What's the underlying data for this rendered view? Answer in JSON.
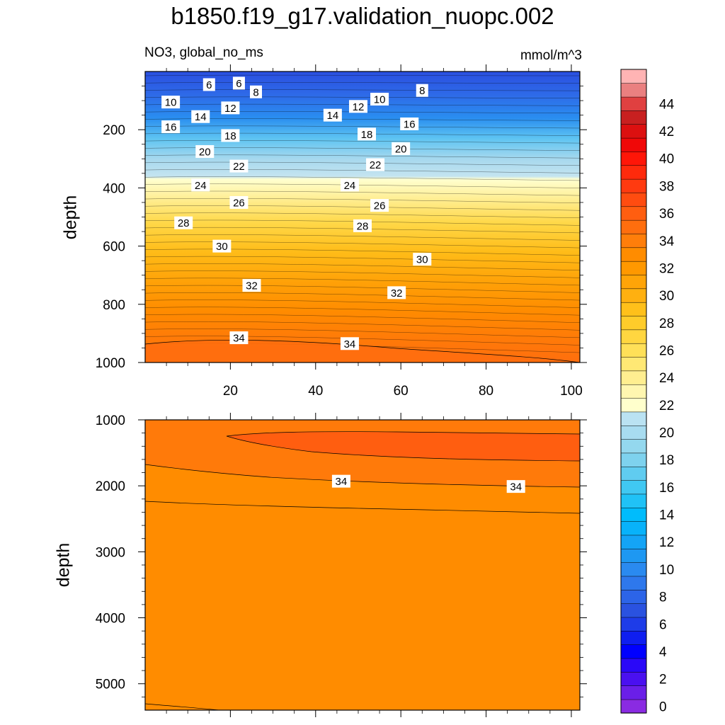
{
  "figure": {
    "title": "b1850.f19_g17.validation_nuopc.002",
    "subtitle_left": "NO3, global_no_ms",
    "subtitle_right": "mmol/m^3"
  },
  "chart_data": [
    {
      "type": "contour",
      "panel": "upper",
      "ylabel": "depth",
      "xlim": [
        0,
        102
      ],
      "ylim": [
        1000,
        0
      ],
      "y_inverted": true,
      "x_ticks": [
        20,
        40,
        60,
        80,
        100
      ],
      "x_ticklabels": [
        "20",
        "40",
        "60",
        "80",
        "100"
      ],
      "y_ticks": [
        200,
        400,
        600,
        800,
        1000
      ],
      "y_ticklabels": [
        "200",
        "400",
        "600",
        "800",
        "1000"
      ],
      "contour_interval": 1,
      "contour_labels": [
        {
          "text": "6",
          "x": 15,
          "depth": 45
        },
        {
          "text": "6",
          "x": 22,
          "depth": 40
        },
        {
          "text": "8",
          "x": 26,
          "depth": 70
        },
        {
          "text": "8",
          "x": 65,
          "depth": 65
        },
        {
          "text": "10",
          "x": 6,
          "depth": 105
        },
        {
          "text": "10",
          "x": 55,
          "depth": 95
        },
        {
          "text": "12",
          "x": 20,
          "depth": 125
        },
        {
          "text": "12",
          "x": 50,
          "depth": 120
        },
        {
          "text": "14",
          "x": 13,
          "depth": 155
        },
        {
          "text": "14",
          "x": 44,
          "depth": 150
        },
        {
          "text": "16",
          "x": 6,
          "depth": 190
        },
        {
          "text": "16",
          "x": 62,
          "depth": 180
        },
        {
          "text": "18",
          "x": 20,
          "depth": 220
        },
        {
          "text": "18",
          "x": 52,
          "depth": 215
        },
        {
          "text": "20",
          "x": 14,
          "depth": 275
        },
        {
          "text": "20",
          "x": 60,
          "depth": 265
        },
        {
          "text": "22",
          "x": 22,
          "depth": 325
        },
        {
          "text": "22",
          "x": 54,
          "depth": 320
        },
        {
          "text": "24",
          "x": 13,
          "depth": 390
        },
        {
          "text": "24",
          "x": 48,
          "depth": 390
        },
        {
          "text": "26",
          "x": 22,
          "depth": 450
        },
        {
          "text": "26",
          "x": 55,
          "depth": 460
        },
        {
          "text": "28",
          "x": 9,
          "depth": 520
        },
        {
          "text": "28",
          "x": 51,
          "depth": 530
        },
        {
          "text": "30",
          "x": 18,
          "depth": 600
        },
        {
          "text": "30",
          "x": 65,
          "depth": 645
        },
        {
          "text": "32",
          "x": 25,
          "depth": 735
        },
        {
          "text": "32",
          "x": 59,
          "depth": 760
        },
        {
          "text": "34",
          "x": 22,
          "depth": 915
        },
        {
          "text": "34",
          "x": 48,
          "depth": 935
        }
      ]
    },
    {
      "type": "contour",
      "panel": "lower",
      "ylabel": "depth",
      "xlim": [
        0,
        102
      ],
      "ylim": [
        5400,
        1000
      ],
      "y_inverted": true,
      "y_ticks": [
        1000,
        2000,
        3000,
        4000,
        5000
      ],
      "y_ticklabels": [
        "1000",
        "2000",
        "3000",
        "4000",
        "5000"
      ],
      "contour_labels": [
        {
          "text": "34",
          "x": 46,
          "depth": 1930
        },
        {
          "text": "34",
          "x": 87,
          "depth": 2010
        }
      ]
    }
  ],
  "colorbar": {
    "levels": [
      0,
      1,
      2,
      3,
      4,
      5,
      6,
      7,
      8,
      9,
      10,
      11,
      12,
      13,
      14,
      15,
      16,
      17,
      18,
      19,
      20,
      21,
      22,
      23,
      24,
      25,
      26,
      27,
      28,
      29,
      30,
      31,
      32,
      33,
      34,
      35,
      36,
      37,
      38,
      39,
      40,
      41,
      42,
      43,
      44,
      45
    ],
    "ticklabels": [
      "0",
      "2",
      "4",
      "6",
      "8",
      "10",
      "12",
      "14",
      "16",
      "18",
      "20",
      "22",
      "24",
      "26",
      "28",
      "30",
      "32",
      "34",
      "36",
      "38",
      "40",
      "42",
      "44"
    ],
    "colors": [
      "#8a2be2",
      "#6a1fe8",
      "#4a10f0",
      "#2a08f8",
      "#0000ff",
      "#0f1ef0",
      "#1e3ce8",
      "#2a52e0",
      "#2c64e8",
      "#2e78ec",
      "#2a8af0",
      "#1e98f2",
      "#14a4f6",
      "#08b2fa",
      "#00bcfc",
      "#20c2f6",
      "#40c8f2",
      "#60ccf0",
      "#7ed2ee",
      "#94d8ee",
      "#a8dcf0",
      "#bae2f2",
      "#ffffcc",
      "#fff6b0",
      "#ffee90",
      "#ffe874",
      "#ffe058",
      "#ffd640",
      "#ffcc2a",
      "#ffc01a",
      "#ffb010",
      "#ffa408",
      "#ff9800",
      "#ff8c00",
      "#ff7e0a",
      "#ff6e0e",
      "#ff5e10",
      "#ff4c10",
      "#ff3a10",
      "#ff2a0c",
      "#ff1608",
      "#f00808",
      "#dc1010",
      "#c82020",
      "#e04040",
      "#ea8080",
      "#ffb4b4"
    ]
  }
}
